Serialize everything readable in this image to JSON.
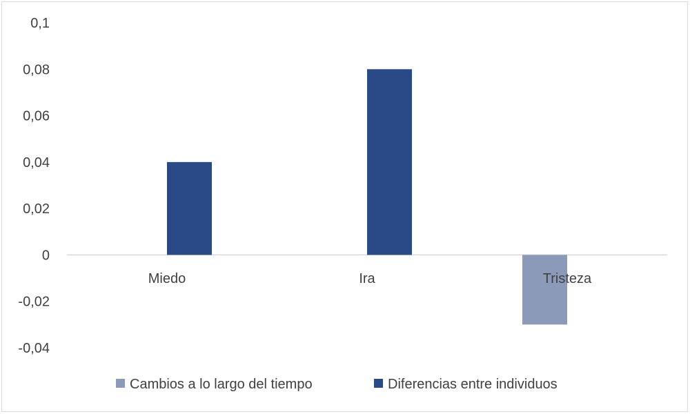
{
  "chart_data": {
    "type": "bar",
    "categories": [
      "Miedo",
      "Ira",
      "Tristeza"
    ],
    "series": [
      {
        "name": "Cambios a lo largo del tiempo",
        "color": "#8c9ab9",
        "values": [
          0,
          0,
          -0.03
        ]
      },
      {
        "name": "Diferencias entre individuos",
        "color": "#294a86",
        "values": [
          0.04,
          0.08,
          0
        ]
      }
    ],
    "ylim": [
      -0.04,
      0.1
    ],
    "yticks": [
      0.1,
      0.08,
      0.06,
      0.04,
      0.02,
      0,
      -0.02,
      -0.04
    ],
    "ytick_labels": [
      "0,1",
      "0,08",
      "0,06",
      "0,04",
      "0,02",
      "0",
      "-0,02",
      "-0,04"
    ],
    "title": "",
    "xlabel": "",
    "ylabel": "",
    "grid": false,
    "legend_position": "bottom"
  }
}
